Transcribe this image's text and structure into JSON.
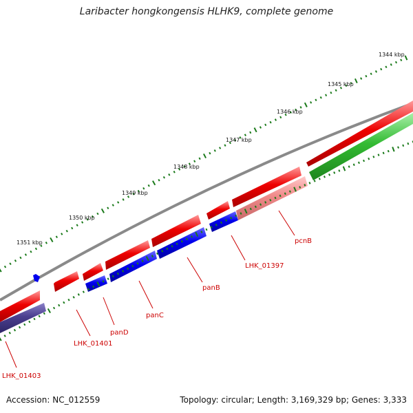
{
  "title": "Laribacter hongkongensis HLHK9, complete genome",
  "footer": {
    "accession": "Accession: NC_012559",
    "summary": "Topology: circular; Length: 3,169,329 bp; Genes: 3,333"
  },
  "colors": {
    "backbone": "#8a8a8a",
    "forward_cds": "#ee0000",
    "reverse_cds": "#0000ee",
    "reverse_cds_dark": "#4b3f8f",
    "pseudo_light": "#f08a8a",
    "green_feature": "#33bb33",
    "tick": "#1a7a1a",
    "gene_label": "#cc0000"
  },
  "kbp_labels": [
    "1344 kbp",
    "1345 kbp",
    "1346 kbp",
    "1347 kbp",
    "1348 kbp",
    "1349 kbp",
    "1350 kbp",
    "1351 kbp"
  ],
  "genes": [
    {
      "name": "pcnB"
    },
    {
      "name": "LHK_01397"
    },
    {
      "name": "panB"
    },
    {
      "name": "panC"
    },
    {
      "name": "panD"
    },
    {
      "name": "LHK_01401"
    },
    {
      "name": "LHK_01403"
    }
  ]
}
